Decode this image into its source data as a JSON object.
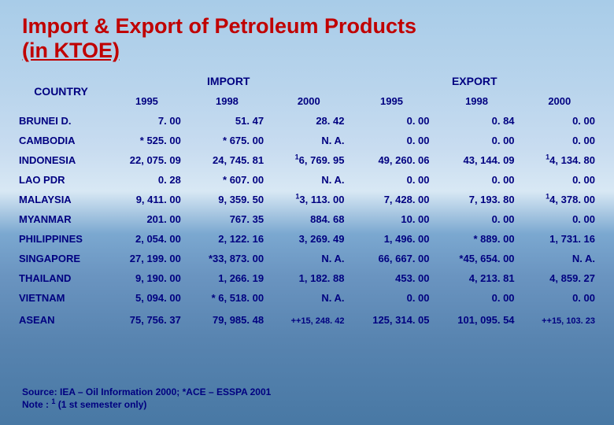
{
  "title_line1": "Import & Export of Petroleum Products",
  "title_line2": "(in KTOE)",
  "colors": {
    "title": "#c00000",
    "text": "#000080",
    "bg_top": "#a8cce8",
    "bg_bottom": "#4878a4"
  },
  "table": {
    "header_country": "COUNTRY",
    "header_import": "IMPORT",
    "header_export": "EXPORT",
    "years_import": [
      "1995",
      "1998",
      "2000"
    ],
    "years_export": [
      "1995",
      "1998",
      "2000"
    ],
    "rows": [
      {
        "country": "BRUNEI D.",
        "imp": [
          "7. 00",
          "51. 47",
          "28. 42"
        ],
        "exp": [
          "0. 00",
          "0. 84",
          "0. 00"
        ]
      },
      {
        "country": "CAMBODIA",
        "imp": [
          "* 525. 00",
          "* 675. 00",
          "N. A."
        ],
        "exp": [
          "0. 00",
          "0. 00",
          "0. 00"
        ]
      },
      {
        "country": "INDONESIA",
        "imp": [
          "22, 075. 09",
          "24, 745. 81",
          "¹6, 769. 95"
        ],
        "exp": [
          "49, 260. 06",
          "43, 144. 09",
          "¹4, 134. 80"
        ]
      },
      {
        "country": "LAO PDR",
        "imp": [
          "0. 28",
          "* 607. 00",
          "N. A."
        ],
        "exp": [
          "0. 00",
          "0. 00",
          "0. 00"
        ]
      },
      {
        "country": "MALAYSIA",
        "imp": [
          "9, 411. 00",
          "9, 359. 50",
          "¹3, 113. 00"
        ],
        "exp": [
          "7, 428. 00",
          "7, 193. 80",
          "¹4, 378. 00"
        ]
      },
      {
        "country": "MYANMAR",
        "imp": [
          "201. 00",
          "767. 35",
          "884. 68"
        ],
        "exp": [
          "10. 00",
          "0. 00",
          "0. 00"
        ]
      },
      {
        "country": "PHILIPPINES",
        "imp": [
          "2, 054. 00",
          "2, 122. 16",
          "3, 269. 49"
        ],
        "exp": [
          "1, 496. 00",
          "* 889. 00",
          "1, 731. 16"
        ]
      },
      {
        "country": "SINGAPORE",
        "imp": [
          "27, 199. 00",
          "*33, 873. 00",
          "N. A."
        ],
        "exp": [
          "66, 667. 00",
          "*45, 654. 00",
          "N. A."
        ]
      },
      {
        "country": "THAILAND",
        "imp": [
          "9, 190. 00",
          "1, 266. 19",
          "1, 182. 88"
        ],
        "exp": [
          "453. 00",
          "4, 213. 81",
          "4, 859. 27"
        ]
      },
      {
        "country": "VIETNAM",
        "imp": [
          "5, 094. 00",
          "* 6, 518. 00",
          "N. A."
        ],
        "exp": [
          "0. 00",
          "0. 00",
          "0. 00"
        ]
      }
    ],
    "total": {
      "country": "ASEAN",
      "imp": [
        "75, 756. 37",
        "79, 985. 48",
        "++15, 248. 42"
      ],
      "exp": [
        "125, 314. 05",
        "101, 095. 54",
        "++15, 103. 23"
      ]
    }
  },
  "footer": {
    "source": "Source: IEA – Oil Information 2000;  *ACE – ESSPA 2001",
    "note_prefix": "Note   : ",
    "note_sup": "1",
    "note_rest": " (1 st semester only)"
  }
}
